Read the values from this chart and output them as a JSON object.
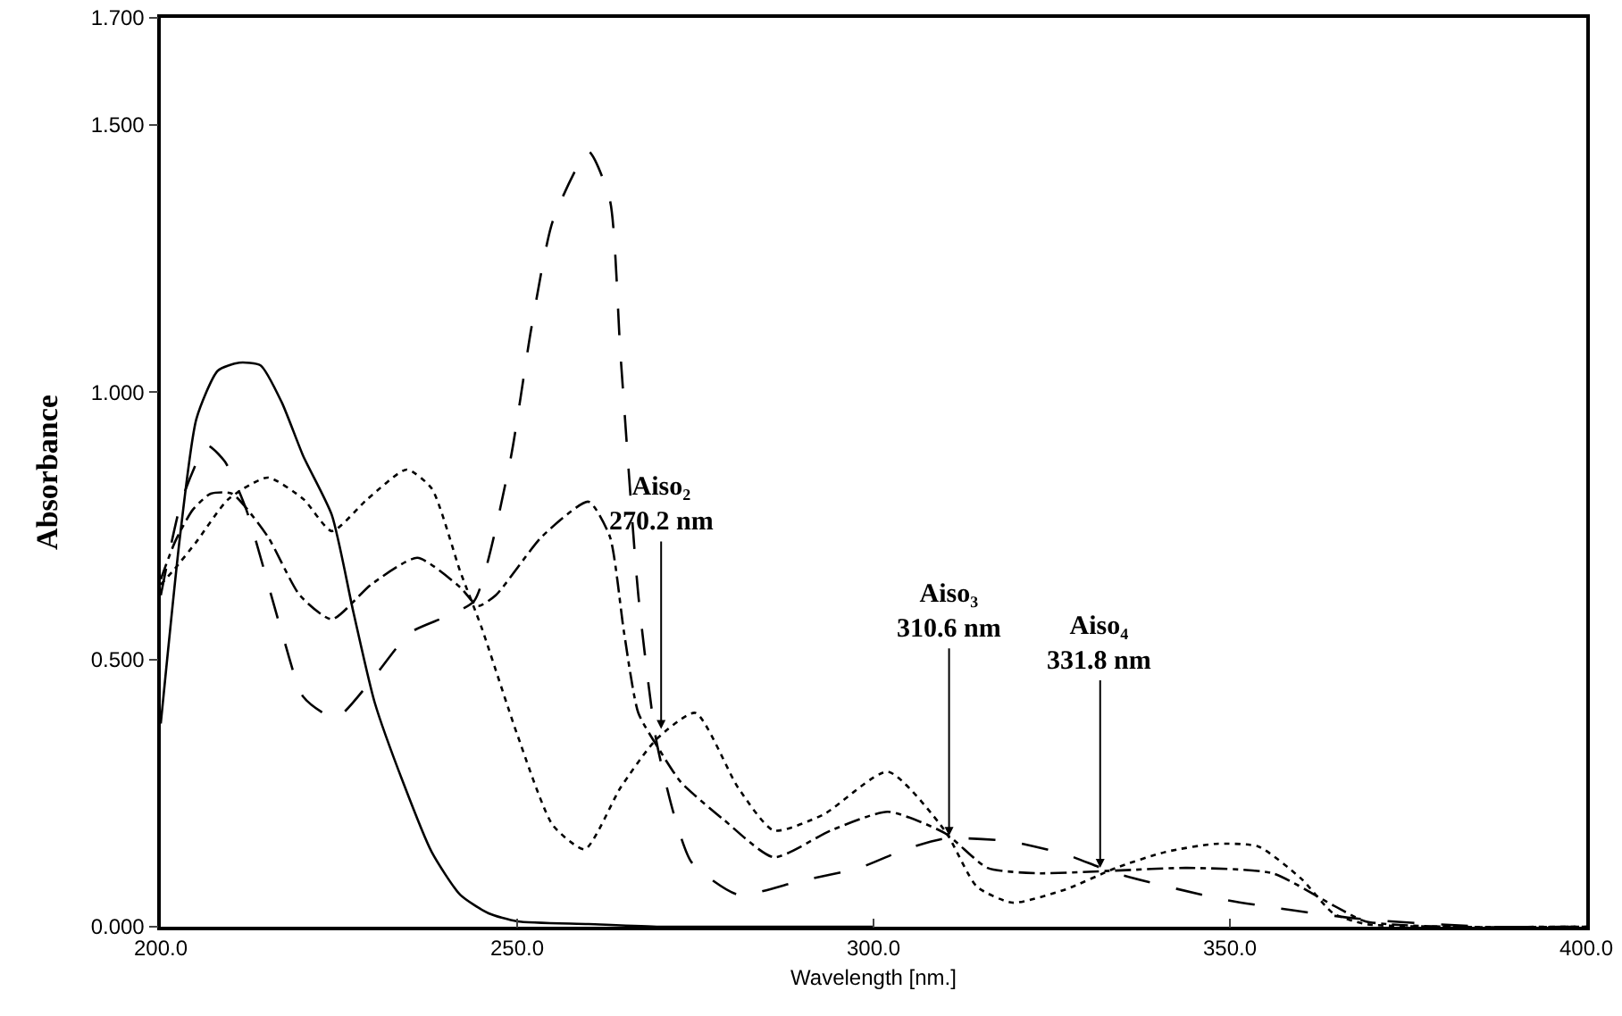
{
  "chart_data": {
    "type": "line",
    "xlabel": "Wavelength [nm.]",
    "ylabel": "Absorbance",
    "xlim": [
      200,
      400
    ],
    "ylim": [
      0,
      1.7
    ],
    "xticks": [
      {
        "value": 200,
        "label": "200.0"
      },
      {
        "value": 250,
        "label": "250.0"
      },
      {
        "value": 300,
        "label": "300.0"
      },
      {
        "value": 350,
        "label": "350.0"
      },
      {
        "value": 400,
        "label": "400.0"
      }
    ],
    "yticks": [
      {
        "value": 0,
        "label": "0.000"
      },
      {
        "value": 0.5,
        "label": "0.500"
      },
      {
        "value": 1,
        "label": "1.000"
      },
      {
        "value": 1.5,
        "label": "1.500"
      },
      {
        "value": 1.7,
        "label": "1.700"
      }
    ],
    "grid": false,
    "marker": "none",
    "series": [
      {
        "color": "#000000",
        "line_style": "solid",
        "x": [
          200,
          202.7,
          205,
          208,
          211,
          214,
          217,
          220,
          224,
          227,
          230,
          234,
          238,
          242,
          246,
          250,
          260,
          270,
          280,
          300
        ],
        "values": [
          0.38,
          0.73,
          0.95,
          1.04,
          1.055,
          1.05,
          0.98,
          0.88,
          0.77,
          0.59,
          0.42,
          0.27,
          0.14,
          0.06,
          0.025,
          0.01,
          0.005,
          0,
          0,
          0
        ]
      },
      {
        "color": "#000000",
        "line_style": "longdash",
        "x": [
          200,
          203,
          206.5,
          209,
          212,
          217,
          220,
          224.5,
          229.5,
          235,
          240,
          244,
          249,
          252,
          255,
          260,
          263,
          264.5,
          267,
          269.5,
          272,
          274.5,
          281,
          289.5,
          298,
          304.5,
          310,
          319,
          327,
          334,
          349.5,
          368,
          386,
          400
        ],
        "values": [
          0.62,
          0.8,
          0.9,
          0.87,
          0.78,
          0.55,
          0.43,
          0.39,
          0.46,
          0.55,
          0.58,
          0.61,
          0.87,
          1.12,
          1.32,
          1.45,
          1.36,
          1.07,
          0.62,
          0.35,
          0.21,
          0.12,
          0.06,
          0.085,
          0.11,
          0.145,
          0.165,
          0.16,
          0.135,
          0.1,
          0.05,
          0.015,
          0,
          0
        ]
      },
      {
        "color": "#000000",
        "line_style": "dotted",
        "x": [
          200,
          202,
          205,
          209.5,
          215,
          220,
          224,
          229,
          234.5,
          238,
          242,
          245,
          250,
          255,
          259.5,
          264.5,
          269.5,
          275,
          281,
          286,
          293,
          302,
          310,
          314.5,
          319.5,
          327,
          334,
          341,
          348,
          354,
          360,
          364.5,
          369,
          380,
          400
        ],
        "values": [
          0.64,
          0.67,
          0.72,
          0.8,
          0.84,
          0.8,
          0.74,
          0.8,
          0.855,
          0.82,
          0.665,
          0.56,
          0.36,
          0.19,
          0.145,
          0.26,
          0.35,
          0.4,
          0.26,
          0.18,
          0.21,
          0.29,
          0.18,
          0.075,
          0.045,
          0.07,
          0.11,
          0.14,
          0.155,
          0.15,
          0.09,
          0.025,
          0.005,
          0,
          0
        ]
      },
      {
        "color": "#000000",
        "line_style": "dashdot",
        "x": [
          200,
          202,
          204.5,
          207,
          210,
          215,
          219.5,
          224,
          229.5,
          236,
          242,
          244.5,
          247,
          253.5,
          260,
          263,
          265,
          267,
          270,
          273,
          279,
          286,
          294,
          302,
          310,
          316,
          323,
          334,
          344,
          356,
          364.5,
          369,
          380,
          400
        ],
        "values": [
          0.65,
          0.72,
          0.78,
          0.81,
          0.81,
          0.73,
          0.62,
          0.575,
          0.64,
          0.69,
          0.635,
          0.6,
          0.62,
          0.73,
          0.795,
          0.73,
          0.55,
          0.4,
          0.33,
          0.27,
          0.2,
          0.13,
          0.18,
          0.215,
          0.175,
          0.11,
          0.1,
          0.105,
          0.11,
          0.1,
          0.04,
          0.01,
          0,
          0
        ]
      }
    ],
    "annotations": [
      {
        "text": "Aiso₂\n270.2 nm",
        "x": 270.2,
        "y": 0.37
      },
      {
        "text": "Aiso₃\n310.6 nm",
        "x": 310.6,
        "y": 0.17
      },
      {
        "text": "Aiso₄\n331.8 nm",
        "x": 331.8,
        "y": 0.11
      }
    ]
  }
}
